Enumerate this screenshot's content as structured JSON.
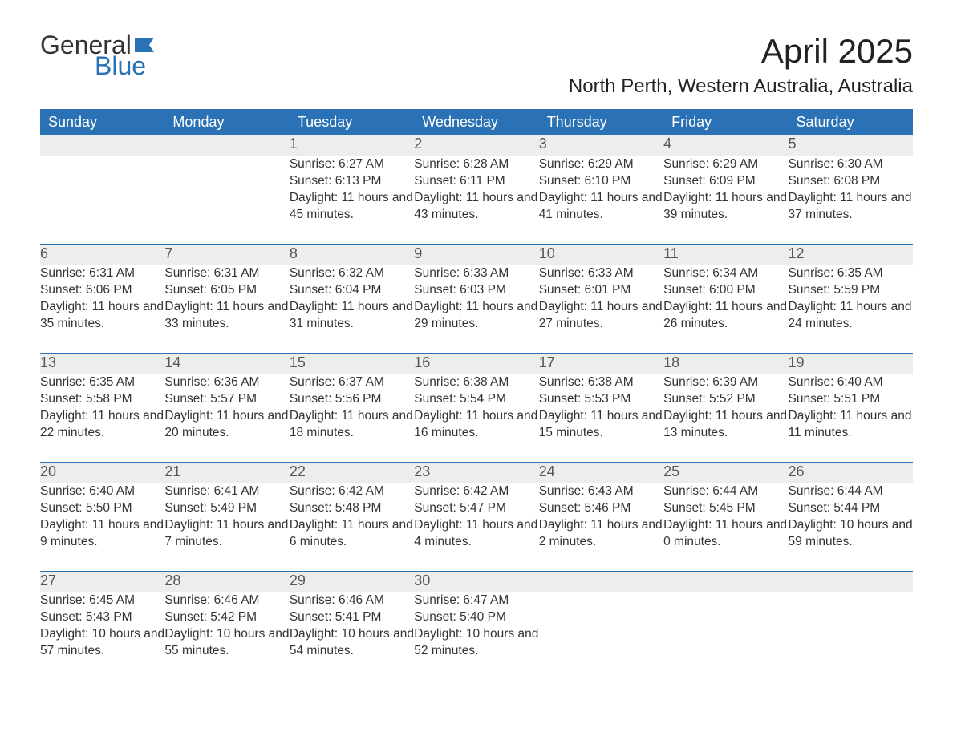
{
  "logo": {
    "word1": "General",
    "word2": "Blue",
    "flag_color": "#2a72b5"
  },
  "title": "April 2025",
  "location": "North Perth, Western Australia, Australia",
  "colors": {
    "header_bg": "#2a72b5",
    "header_text": "#ffffff",
    "daynum_bg": "#ededed",
    "daynum_text": "#555555",
    "body_text": "#333333",
    "page_bg": "#ffffff",
    "rule": "#2a72b5"
  },
  "weekdays": [
    "Sunday",
    "Monday",
    "Tuesday",
    "Wednesday",
    "Thursday",
    "Friday",
    "Saturday"
  ],
  "weeks": [
    [
      null,
      null,
      {
        "n": "1",
        "sr": "6:27 AM",
        "ss": "6:13 PM",
        "dl": "11 hours and 45 minutes."
      },
      {
        "n": "2",
        "sr": "6:28 AM",
        "ss": "6:11 PM",
        "dl": "11 hours and 43 minutes."
      },
      {
        "n": "3",
        "sr": "6:29 AM",
        "ss": "6:10 PM",
        "dl": "11 hours and 41 minutes."
      },
      {
        "n": "4",
        "sr": "6:29 AM",
        "ss": "6:09 PM",
        "dl": "11 hours and 39 minutes."
      },
      {
        "n": "5",
        "sr": "6:30 AM",
        "ss": "6:08 PM",
        "dl": "11 hours and 37 minutes."
      }
    ],
    [
      {
        "n": "6",
        "sr": "6:31 AM",
        "ss": "6:06 PM",
        "dl": "11 hours and 35 minutes."
      },
      {
        "n": "7",
        "sr": "6:31 AM",
        "ss": "6:05 PM",
        "dl": "11 hours and 33 minutes."
      },
      {
        "n": "8",
        "sr": "6:32 AM",
        "ss": "6:04 PM",
        "dl": "11 hours and 31 minutes."
      },
      {
        "n": "9",
        "sr": "6:33 AM",
        "ss": "6:03 PM",
        "dl": "11 hours and 29 minutes."
      },
      {
        "n": "10",
        "sr": "6:33 AM",
        "ss": "6:01 PM",
        "dl": "11 hours and 27 minutes."
      },
      {
        "n": "11",
        "sr": "6:34 AM",
        "ss": "6:00 PM",
        "dl": "11 hours and 26 minutes."
      },
      {
        "n": "12",
        "sr": "6:35 AM",
        "ss": "5:59 PM",
        "dl": "11 hours and 24 minutes."
      }
    ],
    [
      {
        "n": "13",
        "sr": "6:35 AM",
        "ss": "5:58 PM",
        "dl": "11 hours and 22 minutes."
      },
      {
        "n": "14",
        "sr": "6:36 AM",
        "ss": "5:57 PM",
        "dl": "11 hours and 20 minutes."
      },
      {
        "n": "15",
        "sr": "6:37 AM",
        "ss": "5:56 PM",
        "dl": "11 hours and 18 minutes."
      },
      {
        "n": "16",
        "sr": "6:38 AM",
        "ss": "5:54 PM",
        "dl": "11 hours and 16 minutes."
      },
      {
        "n": "17",
        "sr": "6:38 AM",
        "ss": "5:53 PM",
        "dl": "11 hours and 15 minutes."
      },
      {
        "n": "18",
        "sr": "6:39 AM",
        "ss": "5:52 PM",
        "dl": "11 hours and 13 minutes."
      },
      {
        "n": "19",
        "sr": "6:40 AM",
        "ss": "5:51 PM",
        "dl": "11 hours and 11 minutes."
      }
    ],
    [
      {
        "n": "20",
        "sr": "6:40 AM",
        "ss": "5:50 PM",
        "dl": "11 hours and 9 minutes."
      },
      {
        "n": "21",
        "sr": "6:41 AM",
        "ss": "5:49 PM",
        "dl": "11 hours and 7 minutes."
      },
      {
        "n": "22",
        "sr": "6:42 AM",
        "ss": "5:48 PM",
        "dl": "11 hours and 6 minutes."
      },
      {
        "n": "23",
        "sr": "6:42 AM",
        "ss": "5:47 PM",
        "dl": "11 hours and 4 minutes."
      },
      {
        "n": "24",
        "sr": "6:43 AM",
        "ss": "5:46 PM",
        "dl": "11 hours and 2 minutes."
      },
      {
        "n": "25",
        "sr": "6:44 AM",
        "ss": "5:45 PM",
        "dl": "11 hours and 0 minutes."
      },
      {
        "n": "26",
        "sr": "6:44 AM",
        "ss": "5:44 PM",
        "dl": "10 hours and 59 minutes."
      }
    ],
    [
      {
        "n": "27",
        "sr": "6:45 AM",
        "ss": "5:43 PM",
        "dl": "10 hours and 57 minutes."
      },
      {
        "n": "28",
        "sr": "6:46 AM",
        "ss": "5:42 PM",
        "dl": "10 hours and 55 minutes."
      },
      {
        "n": "29",
        "sr": "6:46 AM",
        "ss": "5:41 PM",
        "dl": "10 hours and 54 minutes."
      },
      {
        "n": "30",
        "sr": "6:47 AM",
        "ss": "5:40 PM",
        "dl": "10 hours and 52 minutes."
      },
      null,
      null,
      null
    ]
  ],
  "labels": {
    "sunrise": "Sunrise: ",
    "sunset": "Sunset: ",
    "daylight": "Daylight: "
  }
}
